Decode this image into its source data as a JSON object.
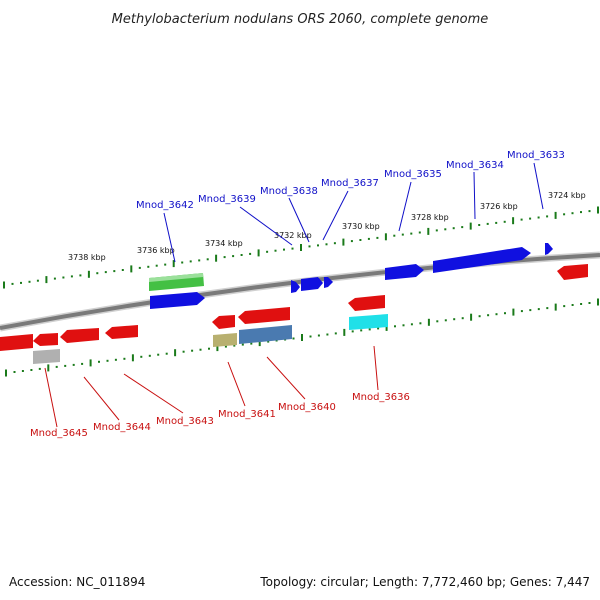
{
  "title": "Methylobacterium nodulans ORS 2060, complete genome",
  "footer": {
    "accession": "Accession: NC_011894",
    "summary": "Topology: circular; Length: 7,772,460 bp; Genes: 7,447"
  },
  "kbp_labels": [
    "3738 kbp",
    "3736 kbp",
    "3734 kbp",
    "3732 kbp",
    "3730 kbp",
    "3728 kbp",
    "3726 kbp",
    "3724 kbp"
  ],
  "genes_top_labels": [
    "Mnod_3642",
    "Mnod_3639",
    "Mnod_3638",
    "Mnod_3637",
    "Mnod_3635",
    "Mnod_3634",
    "Mnod_3633"
  ],
  "genes_bottom_labels": [
    "Mnod_3645",
    "Mnod_3644",
    "Mnod_3643",
    "Mnod_3641",
    "Mnod_3640",
    "Mnod_3636"
  ],
  "colors": {
    "forward_strand": "#1010e0",
    "reverse_strand": "#e01010",
    "tick": "#1a7a1a",
    "backbone": "#8a8a8a",
    "rna_green": "#44c044",
    "steel_blue": "#4a7ab0",
    "cyan": "#20e0e8",
    "olive": "#b8b070",
    "gray": "#b0b0b0"
  }
}
